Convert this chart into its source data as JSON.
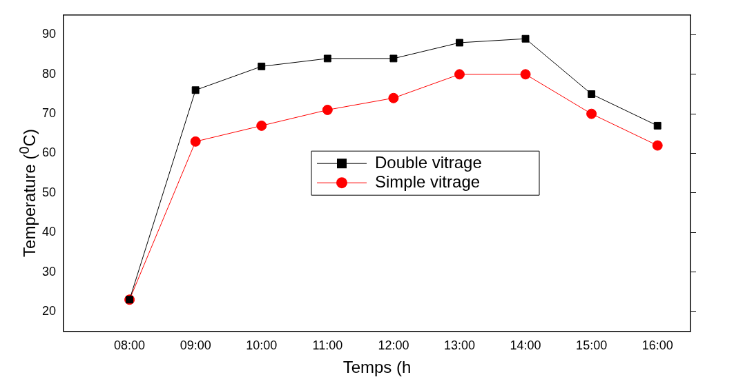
{
  "chart_data": {
    "type": "line",
    "xlabel": "Temps (h",
    "ylabel": "Temperature ($^{0}$C)",
    "x": [
      8,
      9,
      10,
      11,
      12,
      13,
      14,
      15,
      16
    ],
    "xlim": [
      7,
      16.5
    ],
    "xticks": [
      {
        "value": 7,
        "label": null
      },
      {
        "value": 8,
        "label": "08:00"
      },
      {
        "value": 9,
        "label": "09:00"
      },
      {
        "value": 10,
        "label": "10:00"
      },
      {
        "value": 11,
        "label": "11:00"
      },
      {
        "value": 12,
        "label": "12:00"
      },
      {
        "value": 13,
        "label": "13:00"
      },
      {
        "value": 14,
        "label": "14:00"
      },
      {
        "value": 15,
        "label": "15:00"
      },
      {
        "value": 16,
        "label": "16:00"
      }
    ],
    "ylim": [
      15,
      95
    ],
    "yticks": [
      20,
      30,
      40,
      50,
      60,
      70,
      80,
      90
    ],
    "legend": "center",
    "grid": false,
    "line_style": "solid",
    "series": [
      {
        "name": "Double vitrage",
        "color": "#000000",
        "marker": "square",
        "values": [
          23,
          76,
          82,
          84,
          84,
          88,
          89,
          75,
          67
        ]
      },
      {
        "name": "Simple vitrage",
        "color": "#ff0000",
        "marker": "circle",
        "values": [
          23,
          63,
          67,
          71,
          74,
          80,
          80,
          70,
          62
        ]
      }
    ]
  }
}
